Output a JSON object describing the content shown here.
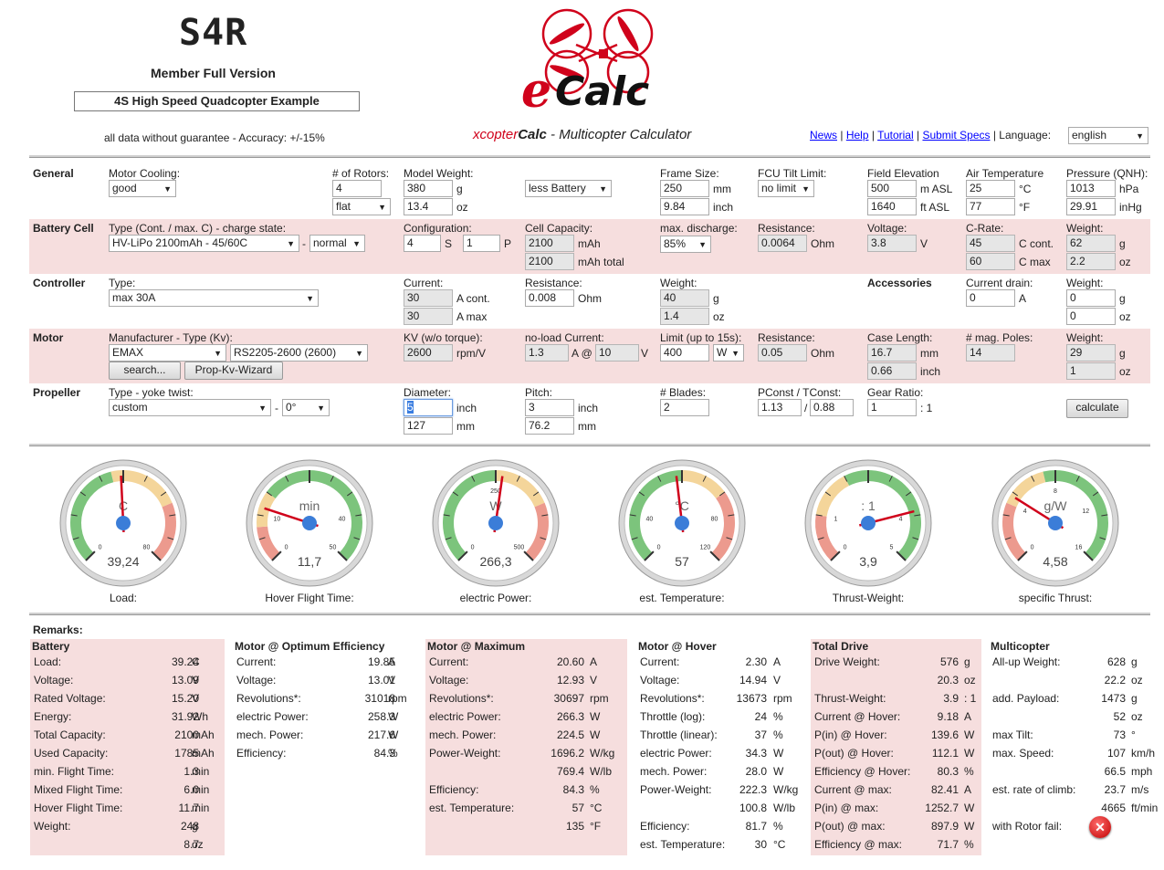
{
  "header": {
    "user_tag": "S4R",
    "version": "Member Full Version",
    "example_title": "4S High Speed Quadcopter Example",
    "disclaimer": "all data without guarantee - Accuracy: +/-15%",
    "logo_e": "e",
    "logo_calc": "Calc",
    "subtitle_x": "xcopter",
    "subtitle_calc": "Calc",
    "subtitle_rest": " - Multicopter Calculator",
    "links": [
      "News",
      "Help",
      "Tutorial",
      "Submit Specs"
    ],
    "language_label": "Language:",
    "language_value": "english"
  },
  "general": {
    "section": "General",
    "motor_cooling_label": "Motor Cooling:",
    "motor_cooling": "good",
    "rotors_label": "# of Rotors:",
    "rotors": "4",
    "layout": "flat",
    "model_weight_label": "Model Weight:",
    "model_weight_g": "380",
    "model_weight_oz": "13.4",
    "weight_mode": "less Battery",
    "frame_label": "Frame Size:",
    "frame_mm": "250",
    "frame_inch": "9.84",
    "fcu_label": "FCU Tilt Limit:",
    "fcu": "no limit",
    "elev_label": "Field Elevation",
    "elev_m": "500",
    "elev_ft": "1640",
    "air_label": "Air Temperature",
    "air_c": "25",
    "air_f": "77",
    "press_label": "Pressure (QNH):",
    "press_hpa": "1013",
    "press_inhg": "29.91",
    "u_g": "g",
    "u_oz": "oz",
    "u_mm": "mm",
    "u_inch": "inch",
    "u_masl": "m ASL",
    "u_ftasl": "ft ASL",
    "u_c": "°C",
    "u_f": "°F",
    "u_hpa": "hPa",
    "u_inhg": "inHg"
  },
  "battery": {
    "section": "Battery Cell",
    "type_label": "Type (Cont. / max. C) - charge state:",
    "type": "HV-LiPo 2100mAh - 45/60C",
    "state": "normal",
    "config_label": "Configuration:",
    "s": "4",
    "p": "1",
    "u_s": "S",
    "u_p": "P",
    "cap_label": "Cell Capacity:",
    "cap": "2100",
    "cap_total": "2100",
    "u_mah": "mAh",
    "u_mah_total": "mAh total",
    "disch_label": "max. discharge:",
    "disch": "85%",
    "res_label": "Resistance:",
    "res": "0.0064",
    "u_ohm": "Ohm",
    "volt_label": "Voltage:",
    "volt": "3.8",
    "u_v": "V",
    "crate_label": "C-Rate:",
    "c_cont": "45",
    "c_max": "60",
    "u_ccont": "C cont.",
    "u_cmax": "C max",
    "weight_label": "Weight:",
    "w_g": "62",
    "w_oz": "2.2"
  },
  "controller": {
    "section": "Controller",
    "type_label": "Type:",
    "type": "max 30A",
    "current_label": "Current:",
    "cur_cont": "30",
    "cur_max": "30",
    "u_acont": "A cont.",
    "u_amax": "A max",
    "res_label": "Resistance:",
    "res": "0.008",
    "weight_label": "Weight:",
    "w_g": "40",
    "w_oz": "1.4",
    "accessories": "Accessories",
    "drain_label": "Current drain:",
    "drain": "0",
    "u_a": "A",
    "acc_weight_label": "Weight:",
    "acc_g": "0",
    "acc_oz": "0"
  },
  "motor": {
    "section": "Motor",
    "mfr_label": "Manufacturer - Type (Kv):",
    "mfr": "EMAX",
    "type": "RS2205-2600 (2600)",
    "search": "search...",
    "wizard": "Prop-Kv-Wizard",
    "kv_label": "KV (w/o torque):",
    "kv": "2600",
    "u_kv": "rpm/V",
    "noload_label": "no-load Current:",
    "noload_a": "1.3",
    "noload_v": "10",
    "u_a_at": "A @",
    "limit_label": "Limit (up to 15s):",
    "limit": "400",
    "limit_unit": "W",
    "res_label": "Resistance:",
    "res": "0.05",
    "case_label": "Case Length:",
    "case_mm": "16.7",
    "case_inch": "0.66",
    "poles_label": "# mag. Poles:",
    "poles": "14",
    "weight_label": "Weight:",
    "w_g": "29",
    "w_oz": "1"
  },
  "propeller": {
    "section": "Propeller",
    "type_label": "Type - yoke twist:",
    "type": "custom",
    "twist": "0°",
    "dia_label": "Diameter:",
    "dia_inch": "5",
    "dia_mm": "127",
    "pitch_label": "Pitch:",
    "pitch_inch": "3",
    "pitch_mm": "76.2",
    "blades_label": "# Blades:",
    "blades": "2",
    "pconst_label": "PConst / TConst:",
    "pconst": "1.13",
    "tconst": "0.88",
    "gear_label": "Gear Ratio:",
    "gear": "1",
    "gear_suffix": ": 1",
    "calculate": "calculate"
  },
  "gauges": [
    {
      "unit": "C",
      "value": "39,24",
      "label": "Load:",
      "min": "0",
      "max": "80",
      "ticks": [
        "0",
        "80"
      ],
      "needle": 0.49
    },
    {
      "unit": "min",
      "value": "11,7",
      "label": "Hover Flight Time:",
      "min": "0",
      "max": "50",
      "ticks": [
        "0",
        "10",
        "40",
        "50"
      ],
      "needle": 0.234
    },
    {
      "unit": "W",
      "value": "266,3",
      "label": "electric Power:",
      "min": "0",
      "max": "500",
      "ticks": [
        "0",
        "250",
        "500"
      ],
      "needle": 0.53
    },
    {
      "unit": "°C",
      "value": "57",
      "label": "est. Temperature:",
      "min": "0",
      "max": "120",
      "ticks": [
        "0",
        "40",
        "80",
        "120"
      ],
      "needle": 0.475
    },
    {
      "unit": ": 1",
      "value": "3,9",
      "label": "Thrust-Weight:",
      "min": "0",
      "max": "5",
      "ticks": [
        "0",
        "1",
        "4",
        "5"
      ],
      "needle": 0.78
    },
    {
      "unit": "g/W",
      "value": "4,58",
      "label": "specific Thrust:",
      "min": "0",
      "max": "16",
      "ticks": [
        "0",
        "4",
        "8",
        "12",
        "16"
      ],
      "needle": 0.286
    }
  ],
  "remarks": {
    "title": "Remarks:",
    "battery": {
      "title": "Battery",
      "rows": [
        [
          "Load:",
          "39.24",
          "C"
        ],
        [
          "Voltage:",
          "13.09",
          "V"
        ],
        [
          "Rated Voltage:",
          "15.20",
          "V"
        ],
        [
          "Energy:",
          "31.92",
          "Wh"
        ],
        [
          "Total Capacity:",
          "2100",
          "mAh"
        ],
        [
          "Used Capacity:",
          "1785",
          "mAh"
        ],
        [
          "min. Flight Time:",
          "1.3",
          "min"
        ],
        [
          "Mixed Flight Time:",
          "6.0",
          "min"
        ],
        [
          "Hover Flight Time:",
          "11.7",
          "min"
        ],
        [
          "Weight:",
          "248",
          "g"
        ],
        [
          "",
          "8.7",
          "oz"
        ]
      ]
    },
    "opt": {
      "title": "Motor @ Optimum Efficiency",
      "rows": [
        [
          "Current:",
          "19.85",
          "A"
        ],
        [
          "Voltage:",
          "13.01",
          "V"
        ],
        [
          "Revolutions*:",
          "31018",
          "rpm"
        ],
        [
          "electric Power:",
          "258.3",
          "W"
        ],
        [
          "mech. Power:",
          "217.6",
          "W"
        ],
        [
          "Efficiency:",
          "84.3",
          "%"
        ]
      ]
    },
    "max": {
      "title": "Motor @ Maximum",
      "rows": [
        [
          "Current:",
          "20.60",
          "A"
        ],
        [
          "Voltage:",
          "12.93",
          "V"
        ],
        [
          "Revolutions*:",
          "30697",
          "rpm"
        ],
        [
          "electric Power:",
          "266.3",
          "W"
        ],
        [
          "mech. Power:",
          "224.5",
          "W"
        ],
        [
          "Power-Weight:",
          "1696.2",
          "W/kg"
        ],
        [
          "",
          "769.4",
          "W/lb"
        ],
        [
          "Efficiency:",
          "84.3",
          "%"
        ],
        [
          "est. Temperature:",
          "57",
          "°C"
        ],
        [
          "",
          "135",
          "°F"
        ]
      ]
    },
    "hover": {
      "title": "Motor @ Hover",
      "rows": [
        [
          "Current:",
          "2.30",
          "A"
        ],
        [
          "Voltage:",
          "14.94",
          "V"
        ],
        [
          "Revolutions*:",
          "13673",
          "rpm"
        ],
        [
          "Throttle (log):",
          "24",
          "%"
        ],
        [
          "Throttle (linear):",
          "37",
          "%"
        ],
        [
          "electric Power:",
          "34.3",
          "W"
        ],
        [
          "mech. Power:",
          "28.0",
          "W"
        ],
        [
          "Power-Weight:",
          "222.3",
          "W/kg"
        ],
        [
          "",
          "100.8",
          "W/lb"
        ],
        [
          "Efficiency:",
          "81.7",
          "%"
        ],
        [
          "est. Temperature:",
          "30",
          "°C"
        ]
      ]
    },
    "drive": {
      "title": "Total Drive",
      "rows": [
        [
          "Drive Weight:",
          "576",
          "g"
        ],
        [
          "",
          "20.3",
          "oz"
        ],
        [
          "Thrust-Weight:",
          "3.9",
          ": 1"
        ],
        [
          "Current @ Hover:",
          "9.18",
          "A"
        ],
        [
          "P(in) @ Hover:",
          "139.6",
          "W"
        ],
        [
          "P(out) @ Hover:",
          "112.1",
          "W"
        ],
        [
          "Efficiency @ Hover:",
          "80.3",
          "%"
        ],
        [
          "Current @ max:",
          "82.41",
          "A"
        ],
        [
          "P(in) @ max:",
          "1252.7",
          "W"
        ],
        [
          "P(out) @ max:",
          "897.9",
          "W"
        ],
        [
          "Efficiency @ max:",
          "71.7",
          "%"
        ]
      ]
    },
    "multi": {
      "title": "Multicopter",
      "rows": [
        [
          "All-up Weight:",
          "628",
          "g"
        ],
        [
          "",
          "22.2",
          "oz"
        ],
        [
          "add. Payload:",
          "1473",
          "g"
        ],
        [
          "",
          "52",
          "oz"
        ],
        [
          "max Tilt:",
          "73",
          "°"
        ],
        [
          "max. Speed:",
          "107",
          "km/h"
        ],
        [
          "",
          "66.5",
          "mph"
        ],
        [
          "est. rate of climb:",
          "23.7",
          "m/s"
        ],
        [
          "",
          "4665",
          "ft/min"
        ],
        [
          "with Rotor fail:",
          "",
          ""
        ]
      ]
    }
  }
}
